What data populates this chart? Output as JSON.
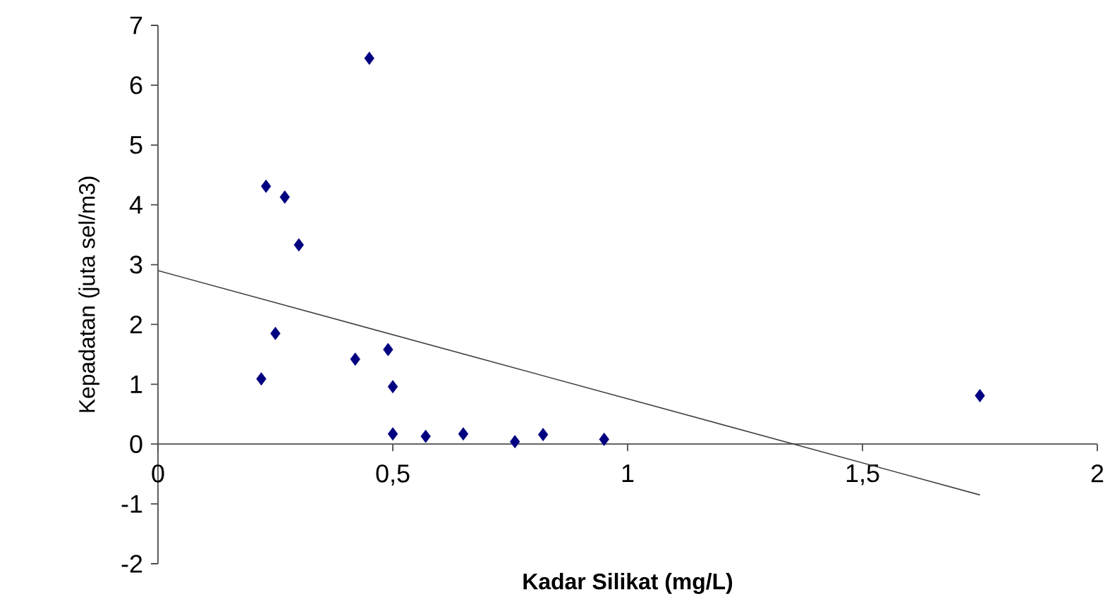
{
  "chart_data": {
    "type": "scatter",
    "xlabel": "Kadar Silikat (mg/L)",
    "ylabel": "Kepadatan (juta sel/m3)",
    "xlim": [
      0,
      2
    ],
    "ylim": [
      -2,
      7
    ],
    "xticks": [
      0,
      {
        "value": 0.5,
        "label": "0,5"
      },
      1,
      {
        "value": 1.5,
        "label": "1,5"
      },
      2
    ],
    "yticks": [
      -2,
      -1,
      0,
      1,
      2,
      3,
      4,
      5,
      6,
      7
    ],
    "grid": false,
    "series": [
      {
        "marker": "diamond",
        "color": "#000080",
        "x": [
          0.45,
          0.23,
          0.27,
          0.3,
          0.25,
          0.22,
          0.42,
          0.49,
          0.5,
          0.5,
          0.57,
          0.65,
          0.76,
          0.82,
          0.95,
          1.75
        ],
        "values": [
          6.45,
          4.31,
          4.13,
          3.33,
          1.85,
          1.09,
          1.42,
          1.58,
          0.96,
          0.17,
          0.13,
          0.17,
          0.04,
          0.16,
          0.08,
          0.81
        ]
      },
      {
        "type": "line",
        "marker": "none",
        "color": "#404040",
        "x": [
          0,
          1.75
        ],
        "values": [
          2.9,
          -0.85
        ]
      }
    ]
  }
}
